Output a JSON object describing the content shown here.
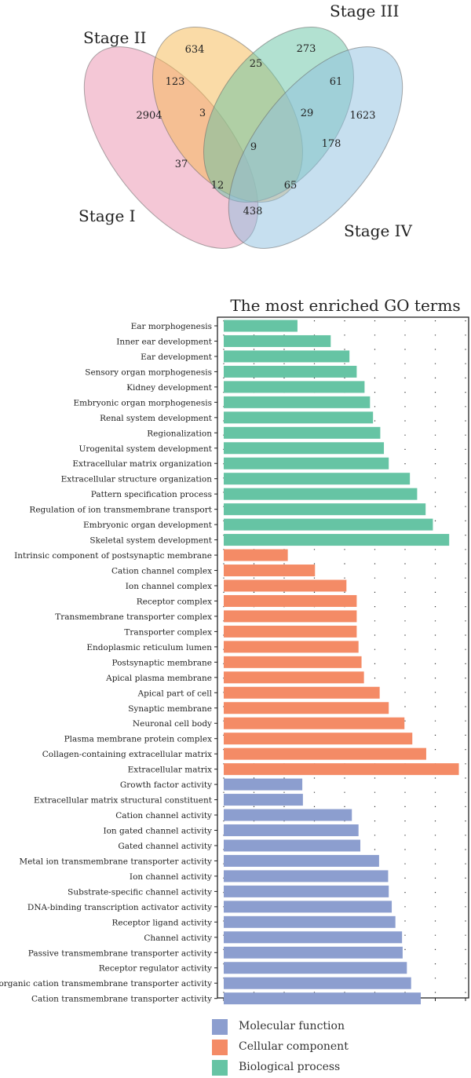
{
  "venn": {
    "sets": [
      {
        "label": "Stage I",
        "color": "#ea8fad"
      },
      {
        "label": "Stage II",
        "color": "#f5b74f"
      },
      {
        "label": "Stage III",
        "color": "#66c4a4"
      },
      {
        "label": "Stage IV",
        "color": "#8dbfe0"
      }
    ],
    "regions": [
      {
        "sets": [
          "I"
        ],
        "value": "2904"
      },
      {
        "sets": [
          "II"
        ],
        "value": "634"
      },
      {
        "sets": [
          "III"
        ],
        "value": "273"
      },
      {
        "sets": [
          "IV"
        ],
        "value": "1623"
      },
      {
        "sets": [
          "I",
          "II"
        ],
        "value": "123"
      },
      {
        "sets": [
          "II",
          "III"
        ],
        "value": "25"
      },
      {
        "sets": [
          "III",
          "IV"
        ],
        "value": "61"
      },
      {
        "sets": [
          "I",
          "II",
          "III"
        ],
        "value": "3"
      },
      {
        "sets": [
          "II",
          "III",
          "IV"
        ],
        "value": "29"
      },
      {
        "sets": [
          "I",
          "II",
          "III",
          "IV"
        ],
        "value": "9"
      },
      {
        "sets": [
          "I",
          "III"
        ],
        "value": "37"
      },
      {
        "sets": [
          "II",
          "IV"
        ],
        "value": "178"
      },
      {
        "sets": [
          "I",
          "III",
          "IV"
        ],
        "value": "12"
      },
      {
        "sets": [
          "I",
          "II",
          "IV"
        ],
        "value": "65"
      },
      {
        "sets": [
          "I",
          "IV"
        ],
        "value": "438"
      }
    ]
  },
  "chart_data": {
    "type": "bar",
    "orientation": "horizontal",
    "title": "The most enriched GO terms",
    "xlabel": "",
    "ylabel": "",
    "grid": "dotted",
    "legend_position": "bottom",
    "colors": {
      "Molecular function": "#8c9ecf",
      "Cellular component": "#f48b66",
      "Biological process": "#66c4a4"
    },
    "legend": [
      "Molecular function",
      "Cellular component",
      "Biological process"
    ],
    "xlim": [
      0,
      38
    ],
    "bars": [
      {
        "term": "Ear morphogenesis",
        "category": "Biological process",
        "value": 12.2
      },
      {
        "term": "Inner ear development",
        "category": "Biological process",
        "value": 17.7
      },
      {
        "term": "Ear development",
        "category": "Biological process",
        "value": 20.8
      },
      {
        "term": "Sensory organ morphogenesis",
        "category": "Biological process",
        "value": 22.0
      },
      {
        "term": "Kidney development",
        "category": "Biological process",
        "value": 23.3
      },
      {
        "term": "Embryonic organ morphogenesis",
        "category": "Biological process",
        "value": 24.2
      },
      {
        "term": "Renal system development",
        "category": "Biological process",
        "value": 24.7
      },
      {
        "term": "Regionalization",
        "category": "Biological process",
        "value": 25.9
      },
      {
        "term": "Urogenital system development",
        "category": "Biological process",
        "value": 26.5
      },
      {
        "term": "Extracellular matrix organization",
        "category": "Biological process",
        "value": 27.3
      },
      {
        "term": "Extracellular structure organization",
        "category": "Biological process",
        "value": 30.8
      },
      {
        "term": "Pattern specification process",
        "category": "Biological process",
        "value": 32.0
      },
      {
        "term": "Regulation of ion transmembrane transport",
        "category": "Biological process",
        "value": 33.4
      },
      {
        "term": "Embryonic organ development",
        "category": "Biological process",
        "value": 34.6
      },
      {
        "term": "Skeletal system development",
        "category": "Biological process",
        "value": 37.3
      },
      {
        "term": "Intrinsic component of postsynaptic membrane",
        "category": "Cellular component",
        "value": 10.6
      },
      {
        "term": "Cation channel complex",
        "category": "Cellular component",
        "value": 15.1
      },
      {
        "term": "Ion channel complex",
        "category": "Cellular component",
        "value": 20.3
      },
      {
        "term": "Receptor complex",
        "category": "Cellular component",
        "value": 22.0
      },
      {
        "term": "Transmembrane transporter complex",
        "category": "Cellular component",
        "value": 22.0
      },
      {
        "term": "Transporter complex",
        "category": "Cellular component",
        "value": 22.0
      },
      {
        "term": "Endoplasmic reticulum lumen",
        "category": "Cellular component",
        "value": 22.3
      },
      {
        "term": "Postsynaptic membrane",
        "category": "Cellular component",
        "value": 22.8
      },
      {
        "term": "Apical plasma membrane",
        "category": "Cellular component",
        "value": 23.2
      },
      {
        "term": "Apical part of cell",
        "category": "Cellular component",
        "value": 25.8
      },
      {
        "term": "Synaptic membrane",
        "category": "Cellular component",
        "value": 27.3
      },
      {
        "term": "Neuronal cell body",
        "category": "Cellular component",
        "value": 29.9
      },
      {
        "term": "Plasma membrane protein complex",
        "category": "Cellular component",
        "value": 31.2
      },
      {
        "term": "Collagen-containing extracellular matrix",
        "category": "Cellular component",
        "value": 33.5
      },
      {
        "term": "Extracellular matrix",
        "category": "Cellular component",
        "value": 38.9
      },
      {
        "term": "Growth factor activity",
        "category": "Molecular function",
        "value": 13.0
      },
      {
        "term": "Extracellular matrix structural constituent",
        "category": "Molecular function",
        "value": 13.1
      },
      {
        "term": "Cation channel activity",
        "category": "Molecular function",
        "value": 21.2
      },
      {
        "term": "Ion gated channel activity",
        "category": "Molecular function",
        "value": 22.3
      },
      {
        "term": "Gated channel activity",
        "category": "Molecular function",
        "value": 22.6
      },
      {
        "term": "Metal ion transmembrane transporter activity",
        "category": "Molecular function",
        "value": 25.7
      },
      {
        "term": "Ion channel activity",
        "category": "Molecular function",
        "value": 27.2
      },
      {
        "term": "Substrate-specific channel activity",
        "category": "Molecular function",
        "value": 27.3
      },
      {
        "term": "DNA-binding transcription activator activity",
        "category": "Molecular function",
        "value": 27.8
      },
      {
        "term": "Receptor ligand activity",
        "category": "Molecular function",
        "value": 28.4
      },
      {
        "term": "Channel activity",
        "category": "Molecular function",
        "value": 29.5
      },
      {
        "term": "Passive transmembrane transporter activity",
        "category": "Molecular function",
        "value": 29.6
      },
      {
        "term": "Receptor regulator activity",
        "category": "Molecular function",
        "value": 30.3
      },
      {
        "term": "Inorganic cation transmembrane transporter activity",
        "category": "Molecular function",
        "value": 31.0
      },
      {
        "term": "Cation transmembrane transporter activity",
        "category": "Molecular function",
        "value": 32.6
      }
    ]
  }
}
